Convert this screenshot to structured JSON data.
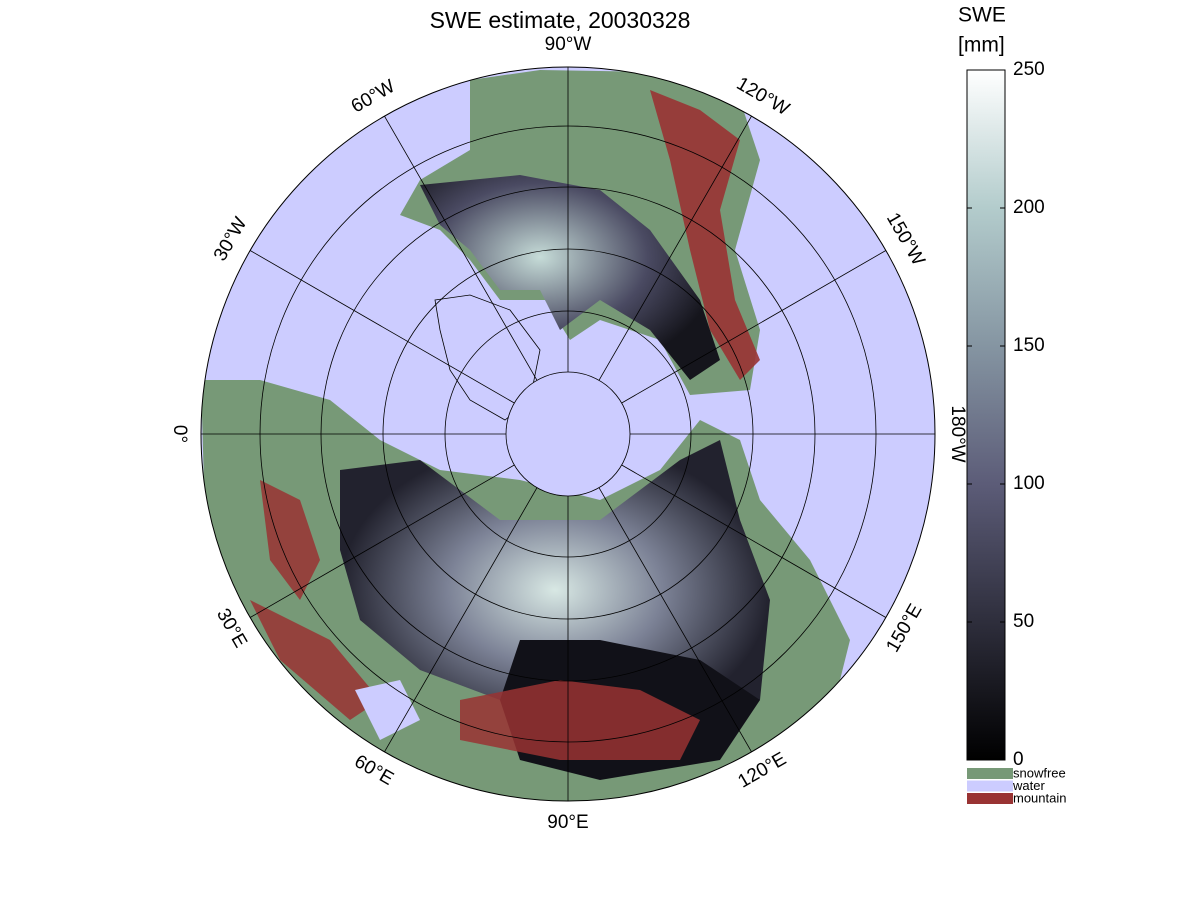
{
  "title": "SWE estimate, 20030328",
  "map": {
    "longitude_labels": [
      {
        "value": 0,
        "label": "0°"
      },
      {
        "value": -30,
        "label": "30°W"
      },
      {
        "value": -60,
        "label": "60°W"
      },
      {
        "value": -90,
        "label": "90°W"
      },
      {
        "value": -120,
        "label": "120°W"
      },
      {
        "value": -150,
        "label": "150°W"
      },
      {
        "value": -180,
        "label": "180°W"
      },
      {
        "value": 150,
        "label": "150°E"
      },
      {
        "value": 120,
        "label": "120°E"
      },
      {
        "value": 90,
        "label": "90°E"
      },
      {
        "value": 60,
        "label": "60°E"
      },
      {
        "value": 30,
        "label": "30°E"
      }
    ],
    "water_color": "#ccccff",
    "snowfree_color": "#779977",
    "mountain_color": "#993333"
  },
  "colorbar": {
    "label_lines": [
      "SWE",
      "[mm]"
    ],
    "lim": [
      0,
      250
    ],
    "ticks": [
      0,
      50,
      100,
      150,
      200,
      250
    ],
    "colormap": [
      "#000000",
      "#2e2e3c",
      "#5c5c78",
      "#8595a2",
      "#b3cccc",
      "#ffffff"
    ],
    "categories": [
      {
        "name": "snowfree",
        "color": "#779977"
      },
      {
        "name": "water",
        "color": "#ccccff"
      },
      {
        "name": "mountain",
        "color": "#993333"
      }
    ]
  }
}
